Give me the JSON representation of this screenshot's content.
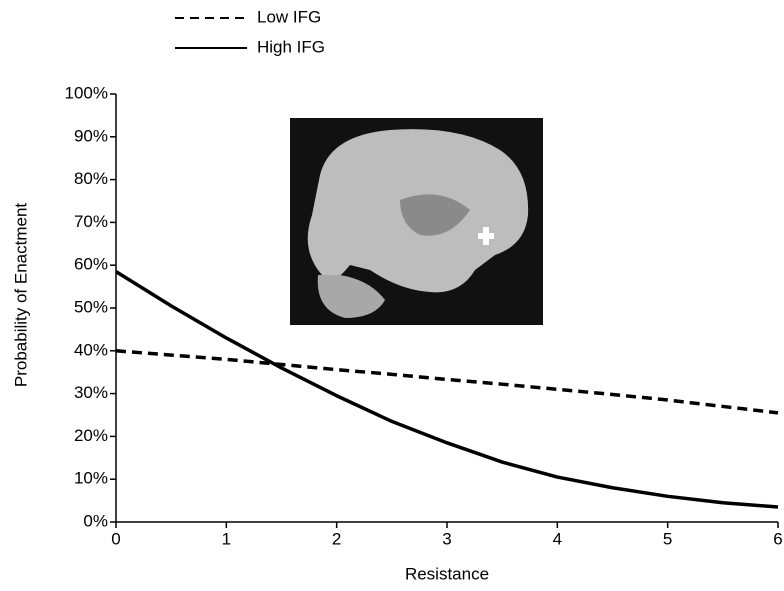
{
  "chart_data": {
    "type": "line",
    "x_label": "Resistance",
    "y_label": "Probability of Enactment",
    "x": [
      0,
      0.5,
      1,
      1.5,
      2,
      2.5,
      3,
      3.5,
      4,
      4.5,
      5,
      5.5,
      6
    ],
    "series": [
      {
        "name": "Low IFG",
        "color": "#000000",
        "dash": true,
        "values": [
          40,
          39,
          38,
          36.8,
          35.6,
          34.5,
          33.3,
          32.2,
          31,
          29.8,
          28.5,
          27,
          25.5
        ]
      },
      {
        "name": "High IFG",
        "color": "#000000",
        "dash": false,
        "values": [
          58.5,
          50.5,
          43,
          36,
          29.5,
          23.5,
          18.5,
          14,
          10.5,
          8,
          6,
          4.5,
          3.5
        ]
      }
    ],
    "xlim": [
      0,
      6
    ],
    "xticks": [
      0,
      1,
      2,
      3,
      4,
      5,
      6
    ],
    "ylim": [
      0,
      100
    ],
    "yticks": [
      {
        "value": 0,
        "label": "0%"
      },
      {
        "value": 10,
        "label": "10%"
      },
      {
        "value": 20,
        "label": "20%"
      },
      {
        "value": 30,
        "label": "30%"
      },
      {
        "value": 40,
        "label": "40%"
      },
      {
        "value": 50,
        "label": "50%"
      },
      {
        "value": 60,
        "label": "60%"
      },
      {
        "value": 70,
        "label": "70%"
      },
      {
        "value": 80,
        "label": "80%"
      },
      {
        "value": 90,
        "label": "90%"
      },
      {
        "value": 100,
        "label": "100%"
      }
    ],
    "grid": false,
    "legend": "top-left"
  }
}
